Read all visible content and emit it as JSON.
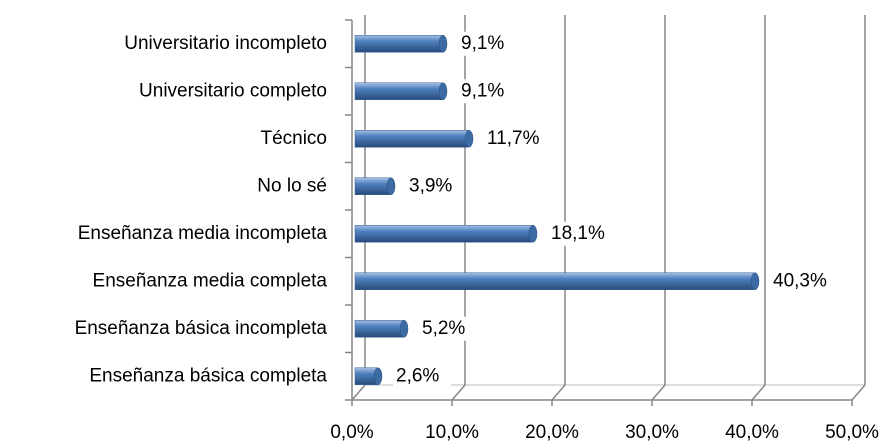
{
  "chart_data": {
    "type": "bar",
    "orientation": "horizontal",
    "categories": [
      "Universitario incompleto",
      "Universitario completo",
      "Técnico",
      "No lo sé",
      "Enseñanza media incompleta",
      "Enseñanza media completa",
      "Enseñanza básica incompleta",
      "Enseñanza básica completa"
    ],
    "values": [
      9.1,
      9.1,
      11.7,
      3.9,
      18.1,
      40.3,
      5.2,
      2.6
    ],
    "value_labels": [
      "9,1%",
      "9,1%",
      "11,7%",
      "3,9%",
      "18,1%",
      "40,3%",
      "5,2%",
      "2,6%"
    ],
    "color": "#4f81bd",
    "xlim": [
      0,
      50
    ],
    "xticks": [
      {
        "value": 0,
        "label": "0,0%"
      },
      {
        "value": 10,
        "label": "10,0%"
      },
      {
        "value": 20,
        "label": "20,0%"
      },
      {
        "value": 30,
        "label": "30,0%"
      },
      {
        "value": 40,
        "label": "40,0%"
      },
      {
        "value": 50,
        "label": "50,0%"
      }
    ],
    "grid": true
  }
}
